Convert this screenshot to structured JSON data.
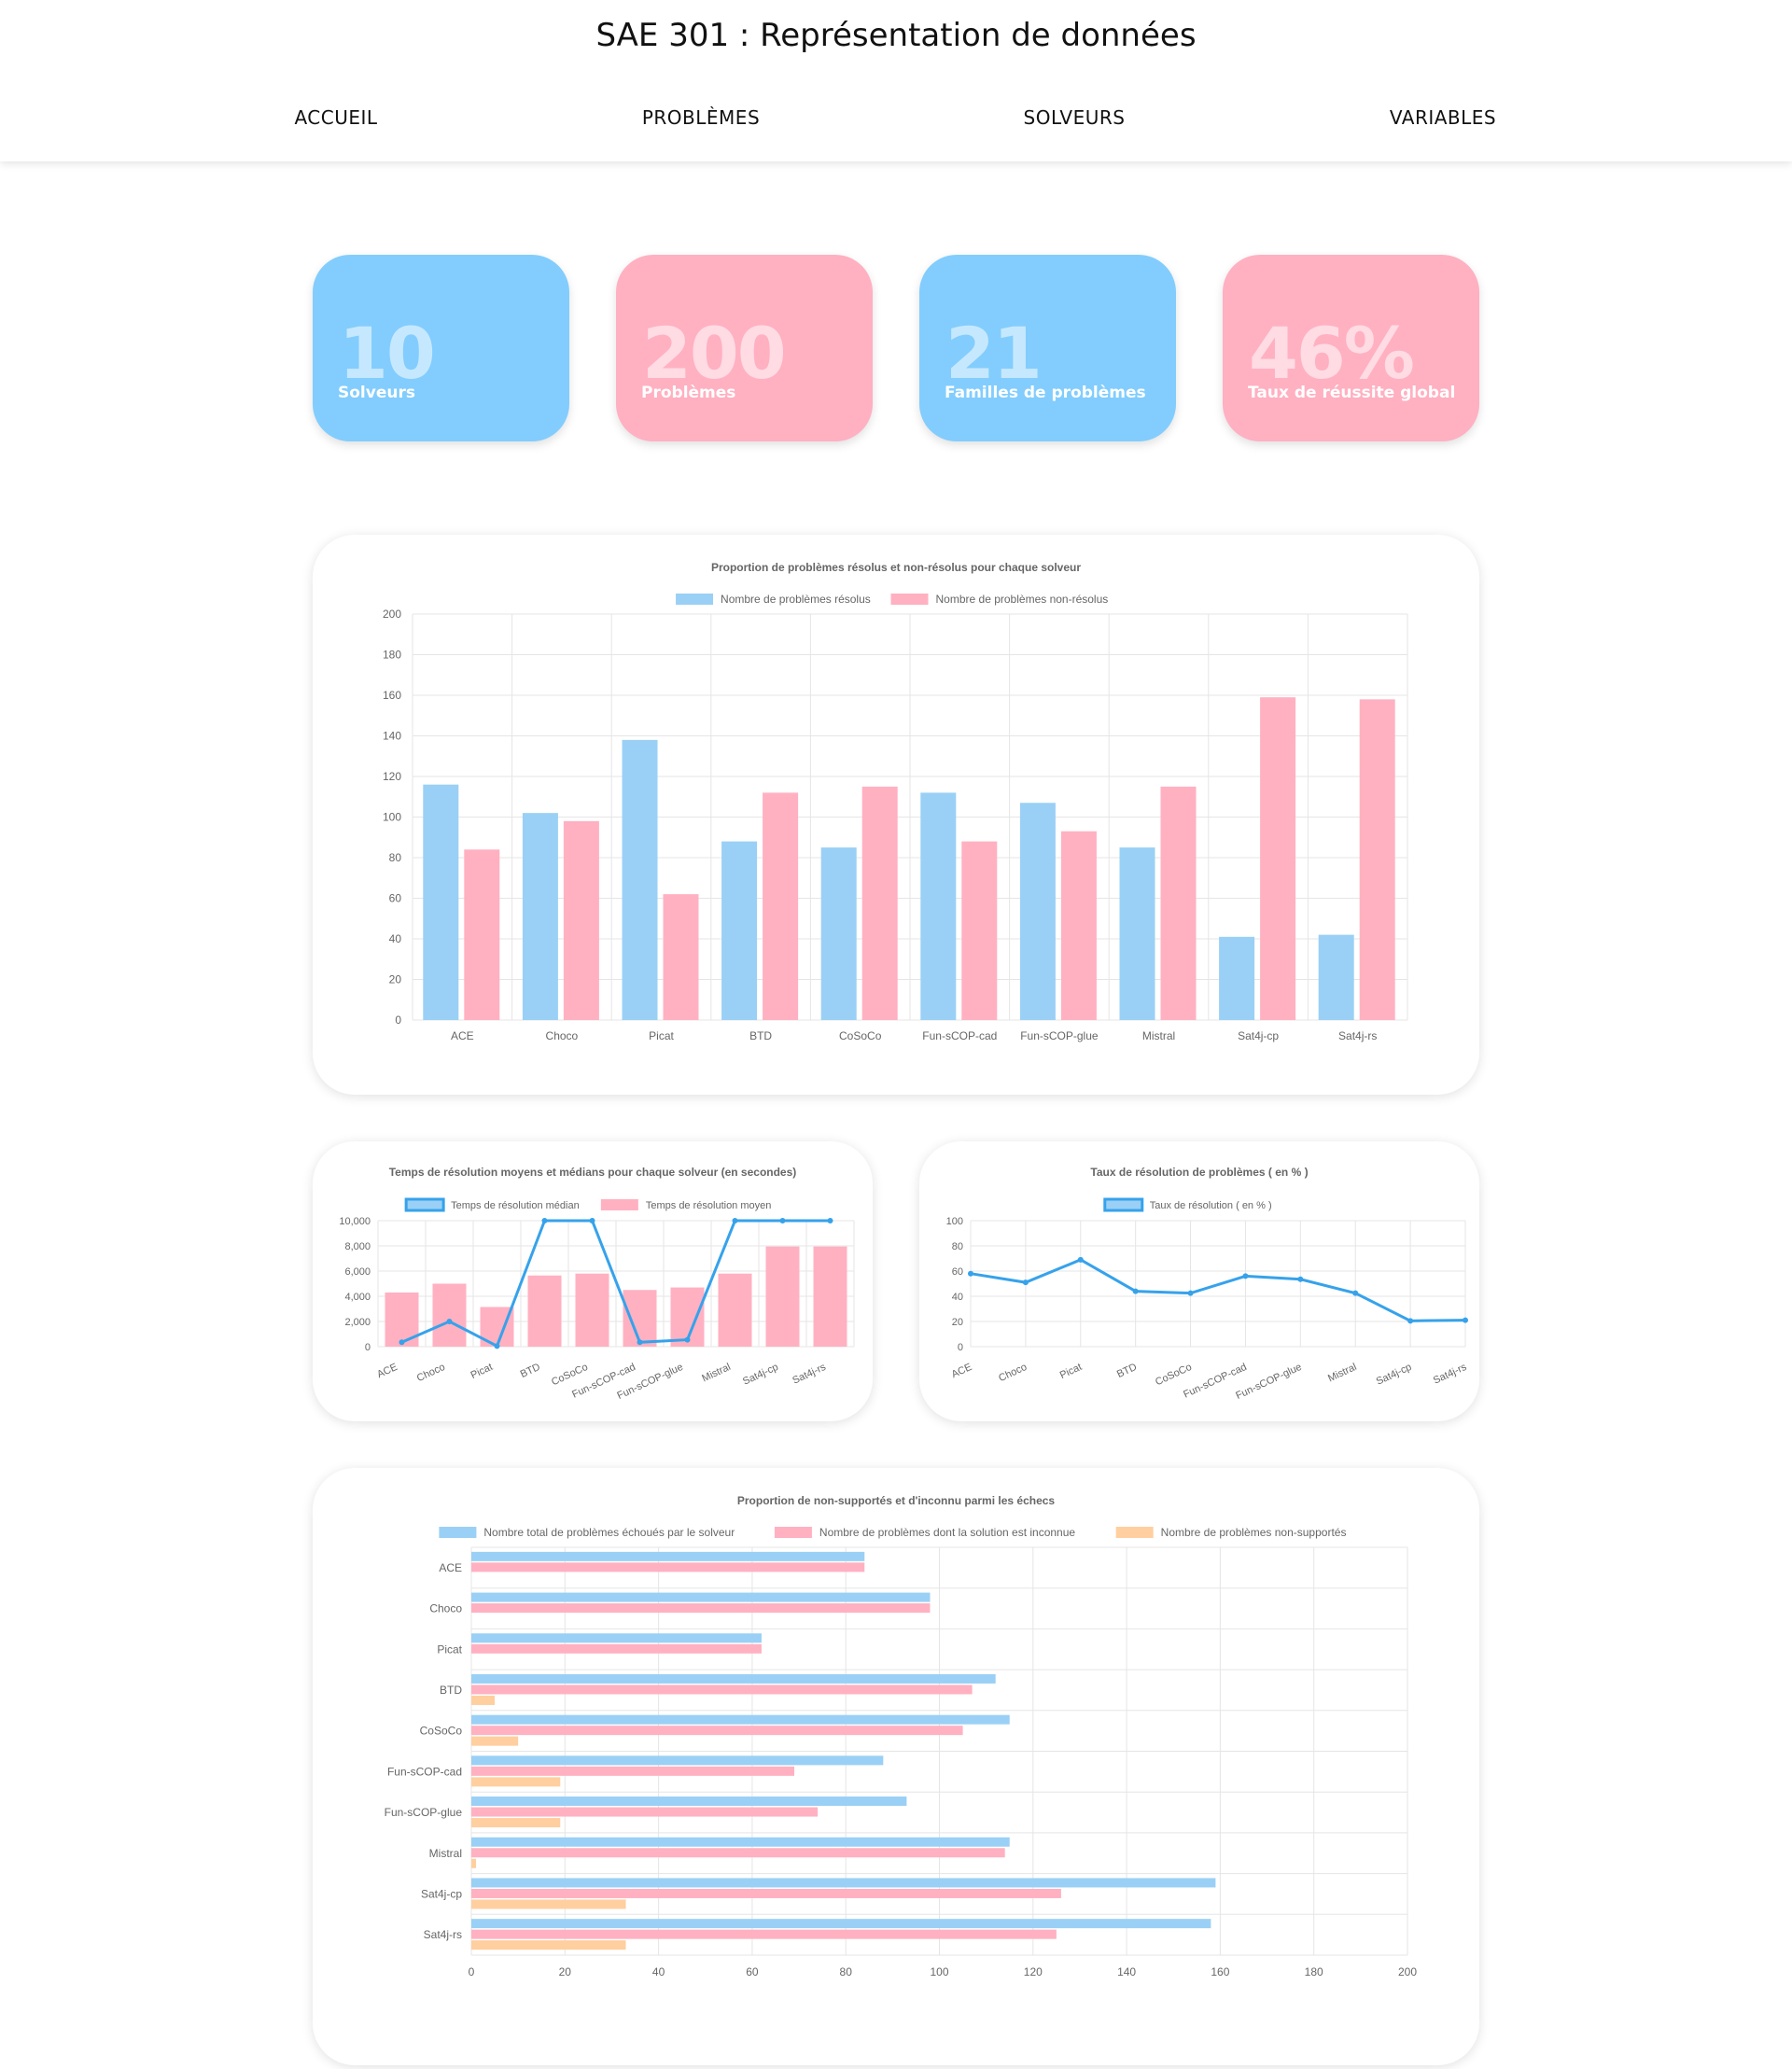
{
  "header": {
    "title": "SAE 301 : Représentation de données",
    "nav": [
      "ACCUEIL",
      "PROBLÈMES",
      "SOLVEURS",
      "VARIABLES"
    ]
  },
  "stats": [
    {
      "value": "10",
      "label": "Solveurs",
      "color": "blue"
    },
    {
      "value": "200",
      "label": "Problèmes",
      "color": "pink"
    },
    {
      "value": "21",
      "label": "Familles de problèmes",
      "color": "blue"
    },
    {
      "value": "46%",
      "label": "Taux de réussite global",
      "color": "pink"
    }
  ],
  "colors": {
    "blue": "#9ad0f5",
    "pink": "#ffb1c1",
    "orange": "#ffcf9f",
    "line": "#36a2eb",
    "grid": "#e5e5e5",
    "text": "#666666"
  },
  "chart_data": [
    {
      "id": "chart1",
      "type": "bar",
      "title": "Proportion de problèmes résolus et non-résolus pour chaque solveur",
      "categories": [
        "ACE",
        "Choco",
        "Picat",
        "BTD",
        "CoSoCo",
        "Fun-sCOP-cad",
        "Fun-sCOP-glue",
        "Mistral",
        "Sat4j-cp",
        "Sat4j-rs"
      ],
      "series": [
        {
          "name": "Nombre de problèmes résolus",
          "values": [
            116,
            102,
            138,
            88,
            85,
            112,
            107,
            85,
            41,
            42
          ]
        },
        {
          "name": "Nombre de problèmes non-résolus",
          "values": [
            84,
            98,
            62,
            112,
            115,
            88,
            93,
            115,
            159,
            158
          ]
        }
      ],
      "ylim": [
        0,
        200
      ],
      "yticks": [
        "0",
        "20",
        "40",
        "60",
        "80",
        "100",
        "120",
        "140",
        "160",
        "180",
        "200"
      ],
      "legend": "top",
      "grid": true
    },
    {
      "id": "chart2",
      "type": "bar",
      "title": "Temps de résolution moyens et médians pour chaque solveur (en secondes)",
      "categories": [
        "ACE",
        "Choco",
        "Picat",
        "BTD",
        "CoSoCo",
        "Fun-sCOP-cad",
        "Fun-sCOP-glue",
        "Mistral",
        "Sat4j-cp",
        "Sat4j-rs"
      ],
      "series": [
        {
          "name": "Temps de résolution médian",
          "type": "line",
          "values": [
            350,
            2000,
            50,
            10000,
            10000,
            350,
            550,
            10000,
            10000,
            10000
          ]
        },
        {
          "name": "Temps de résolution moyen",
          "type": "bar",
          "values": [
            4300,
            5000,
            3150,
            5650,
            5800,
            4500,
            4700,
            5800,
            7950,
            7950
          ]
        }
      ],
      "ylim": [
        0,
        10000
      ],
      "yticks": [
        "0",
        "2,000",
        "4,000",
        "6,000",
        "8,000",
        "10,000"
      ],
      "legend": "top",
      "grid": true
    },
    {
      "id": "chart3",
      "type": "line",
      "title": "Taux de résolution de problèmes ( en % )",
      "categories": [
        "ACE",
        "Choco",
        "Picat",
        "BTD",
        "CoSoCo",
        "Fun-sCOP-cad",
        "Fun-sCOP-glue",
        "Mistral",
        "Sat4j-cp",
        "Sat4j-rs"
      ],
      "series": [
        {
          "name": "Taux de résolution ( en % )",
          "values": [
            58,
            51,
            69,
            44,
            42.5,
            56,
            53.5,
            42.5,
            20.5,
            21
          ]
        }
      ],
      "ylim": [
        0,
        100
      ],
      "yticks": [
        "0",
        "20",
        "40",
        "60",
        "80",
        "100"
      ],
      "legend": "top",
      "grid": true
    },
    {
      "id": "chart4",
      "type": "bar",
      "orientation": "horizontal",
      "title": "Proportion de non-supportés et d'inconnu parmi les échecs",
      "categories": [
        "ACE",
        "Choco",
        "Picat",
        "BTD",
        "CoSoCo",
        "Fun-sCOP-cad",
        "Fun-sCOP-glue",
        "Mistral",
        "Sat4j-cp",
        "Sat4j-rs"
      ],
      "series": [
        {
          "name": "Nombre total de problèmes échoués par le solveur",
          "values": [
            84,
            98,
            62,
            112,
            115,
            88,
            93,
            115,
            159,
            158
          ]
        },
        {
          "name": "Nombre de problèmes dont la solution est inconnue",
          "values": [
            84,
            98,
            62,
            107,
            105,
            69,
            74,
            114,
            126,
            125
          ]
        },
        {
          "name": "Nombre de problèmes non-supportés",
          "values": [
            0,
            0,
            0,
            5,
            10,
            19,
            19,
            1,
            33,
            33
          ]
        }
      ],
      "xlim": [
        0,
        200
      ],
      "xticks": [
        "0",
        "20",
        "40",
        "60",
        "80",
        "100",
        "120",
        "140",
        "160",
        "180",
        "200"
      ],
      "legend": "top",
      "grid": true
    }
  ]
}
